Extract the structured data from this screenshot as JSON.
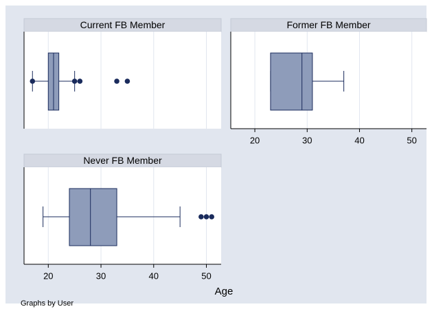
{
  "chart_data": [
    {
      "type": "box",
      "title": "Current FB Member",
      "whisker_low": 17,
      "q1": 20,
      "median": 21,
      "q3": 22,
      "whisker_high": 25,
      "outliers": [
        17,
        25,
        26,
        33,
        35
      ],
      "xlim": [
        15.4,
        52.8
      ],
      "xticks": [
        20,
        30,
        40,
        50
      ],
      "tick_labels": false,
      "grid": true,
      "color": "#8e9cba"
    },
    {
      "type": "box",
      "title": "Former FB Member",
      "whisker_low": 23,
      "q1": 23,
      "median": 29,
      "q3": 31,
      "whisker_high": 37,
      "outliers": [],
      "xlim": [
        15.4,
        52.8
      ],
      "xticks": [
        20,
        30,
        40,
        50
      ],
      "tick_labels": true,
      "grid": true,
      "color": "#8e9cba"
    },
    {
      "type": "box",
      "title": "Never FB Member",
      "whisker_low": 19,
      "q1": 24,
      "median": 28,
      "q3": 33,
      "whisker_high": 45,
      "outliers": [
        49,
        50,
        51
      ],
      "xlim": [
        15.4,
        52.8
      ],
      "xticks": [
        20,
        30,
        40,
        50
      ],
      "tick_labels": true,
      "grid": true,
      "color": "#8e9cba"
    }
  ],
  "x_label": "Age",
  "note": "Graphs by User"
}
